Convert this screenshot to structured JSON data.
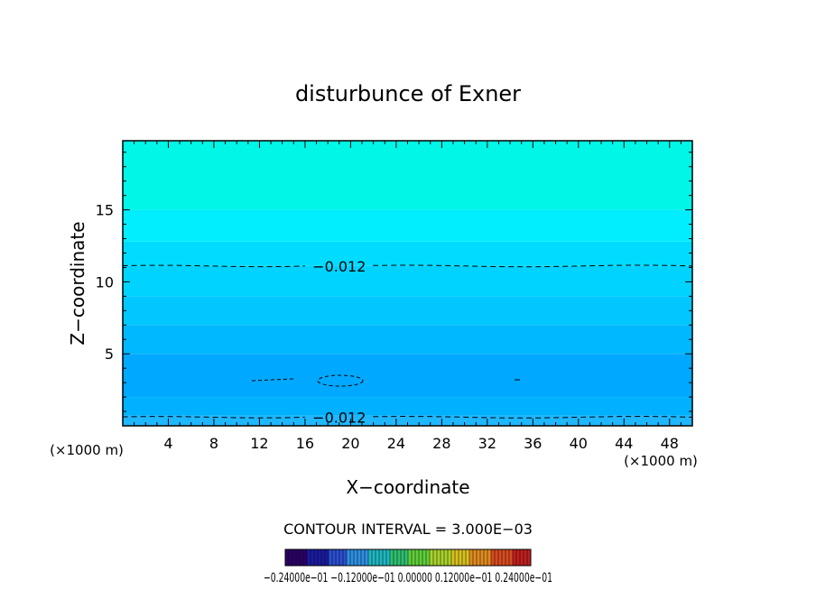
{
  "chart_data": {
    "type": "heatmap",
    "title": "disturbunce of Exner",
    "xlabel": "X−coordinate",
    "ylabel": "Z−coordinate",
    "x_unit_left": "(×1000 m)",
    "x_unit_right": "(×1000 m)",
    "xlim": [
      0,
      50
    ],
    "ylim": [
      0,
      19.8
    ],
    "x_ticks": [
      4,
      8,
      12,
      16,
      20,
      24,
      28,
      32,
      36,
      40,
      44,
      48
    ],
    "x_tick_labels": [
      "4",
      "8",
      "12",
      "16",
      "20",
      "24",
      "28",
      "32",
      "36",
      "40",
      "44",
      "48"
    ],
    "y_ticks": [
      5,
      10,
      15
    ],
    "y_tick_labels": [
      "5",
      "10",
      "15"
    ],
    "bands": [
      {
        "z0": 0.0,
        "z1": 0.7,
        "color": "#1fb7ff"
      },
      {
        "z0": 0.7,
        "z1": 2.0,
        "color": "#00b1ff"
      },
      {
        "z0": 2.0,
        "z1": 5.0,
        "color": "#00a8ff"
      },
      {
        "z0": 5.0,
        "z1": 7.0,
        "color": "#00b8ff"
      },
      {
        "z0": 7.0,
        "z1": 9.0,
        "color": "#00c7ff"
      },
      {
        "z0": 9.0,
        "z1": 11.1,
        "color": "#00d3ff"
      },
      {
        "z0": 11.1,
        "z1": 12.8,
        "color": "#00dcff"
      },
      {
        "z0": 12.8,
        "z1": 15.0,
        "color": "#00eeff"
      },
      {
        "z0": 15.0,
        "z1": 19.8,
        "color": "#00f6e6"
      }
    ],
    "contours": [
      {
        "level": -0.012,
        "label": "−0.012",
        "z_mean": 11.1,
        "label_x": 19
      },
      {
        "level": -0.012,
        "label": "−0.012",
        "z_mean": 0.6,
        "label_x": 19
      }
    ],
    "contour_interval_text": "CONTOUR INTERVAL = 3.000E−03",
    "colorbar_colors": [
      "#2a0066",
      "#1a1aa0",
      "#2a4fd0",
      "#2e8fe0",
      "#20b7c0",
      "#2fbf70",
      "#5fcf3a",
      "#a8d12a",
      "#d8c020",
      "#e08a20",
      "#d84a20",
      "#c01f1f"
    ],
    "colorbar_label_text": "−0.24000e−01  −0.12000e−01  0.00000  0.12000e−01  0.24000e−01"
  }
}
